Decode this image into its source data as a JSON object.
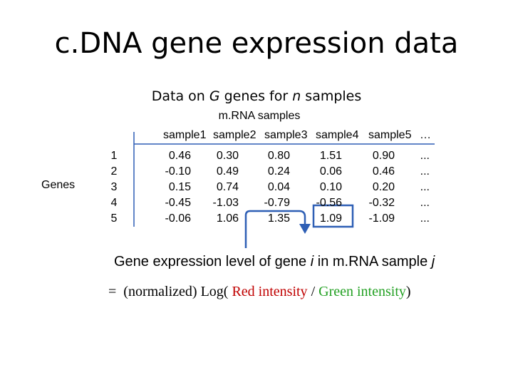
{
  "title": "c.DNA gene expression data",
  "subtitle": {
    "prefix": "Data on ",
    "G": "G",
    "middle": " genes for ",
    "n": "n",
    "suffix": " samples"
  },
  "column_group_label": "m.RNA samples",
  "row_group_label": "Genes",
  "table": {
    "columns": [
      "sample1",
      "sample2",
      "sample3",
      "sample4",
      "sample5",
      "…"
    ],
    "row_indices": [
      "1",
      "2",
      "3",
      "4",
      "5"
    ],
    "rows": [
      [
        "0.46",
        "0.30",
        "0.80",
        "1.51",
        "0.90",
        "..."
      ],
      [
        "-0.10",
        "0.49",
        "0.24",
        "0.06",
        "0.46",
        "..."
      ],
      [
        "0.15",
        "0.74",
        "0.04",
        "0.10",
        "0.20",
        "..."
      ],
      [
        "-0.45",
        "-1.03",
        "-0.79",
        "-0.56",
        "-0.32",
        "..."
      ],
      [
        "-0.06",
        "1.06",
        "1.35",
        "1.09",
        "-1.09",
        "..."
      ]
    ],
    "highlighted_cell": {
      "row": 5,
      "column": "sample4"
    }
  },
  "caption": {
    "part1": "Gene expression level of gene ",
    "i": "i",
    "part2": " in m.RNA sample ",
    "j": "j"
  },
  "formula": {
    "equals": "=",
    "prefix": "(normalized) Log(",
    "red_text": "Red intensity",
    "slash": " / ",
    "green_text": "Green intensity",
    "suffix": ")"
  },
  "colors": {
    "red": "#c00000",
    "green": "#22a022",
    "highlight_box": "#2e5fb5",
    "arrow": "#2e5fb5"
  }
}
